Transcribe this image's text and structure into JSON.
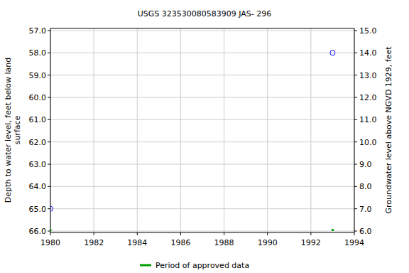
{
  "chart_data": {
    "type": "scatter",
    "title": "USGS 323530080583909 JAS- 296",
    "ylabel": [
      "Depth to water level, feet below land",
      "surface"
    ],
    "y2label": "Groundwater level above NGVD 1929, feet",
    "xlim": [
      1980,
      1994
    ],
    "xticks": [
      1980,
      1982,
      1984,
      1986,
      1988,
      1990,
      1992,
      1994
    ],
    "ylim": [
      57,
      66
    ],
    "yticks": [
      {
        "value": 57,
        "label": "57.0"
      },
      {
        "value": 58,
        "label": "58.0"
      },
      {
        "value": 59,
        "label": "59.0"
      },
      {
        "value": 60,
        "label": "60.0"
      },
      {
        "value": 61,
        "label": "61.0"
      },
      {
        "value": 62,
        "label": "62.0"
      },
      {
        "value": 63,
        "label": "63.0"
      },
      {
        "value": 64,
        "label": "64.0"
      },
      {
        "value": 65,
        "label": "65.0"
      },
      {
        "value": 66,
        "label": "66.0"
      }
    ],
    "y2lim": [
      15,
      6
    ],
    "y2ticks": [
      {
        "value": 15,
        "label": "15.0"
      },
      {
        "value": 14,
        "label": "14.0"
      },
      {
        "value": 13,
        "label": "13.0"
      },
      {
        "value": 12,
        "label": "12.0"
      },
      {
        "value": 11,
        "label": "11.0"
      },
      {
        "value": 10,
        "label": "10.0"
      },
      {
        "value": 9,
        "label": "9.0"
      },
      {
        "value": 8,
        "label": "8.0"
      },
      {
        "value": 7,
        "label": "7.0"
      },
      {
        "value": 6,
        "label": "6.0"
      }
    ],
    "grid": true,
    "legend": "bottom",
    "series": [
      {
        "color": "#0000ff",
        "marker": "circle",
        "x": [
          1980,
          1993
        ],
        "values": [
          65,
          58
        ]
      },
      {
        "name": "Period of approved data",
        "color": "#00a000",
        "marker": "square",
        "x": [
          1980,
          1993
        ],
        "values": [
          66,
          66
        ]
      }
    ]
  }
}
